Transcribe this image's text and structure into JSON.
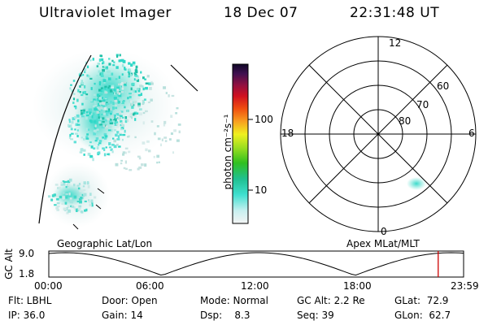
{
  "header": {
    "instrument": "Ultraviolet Imager",
    "date": "18 Dec 07",
    "time": "22:31:48 UT"
  },
  "colorbar": {
    "label": "photon cm⁻²s⁻¹",
    "ticks": [
      "100",
      "10"
    ]
  },
  "polar_plot": {
    "clock_labels": {
      "top": "12",
      "left": "18",
      "right": "6",
      "bottom": "0"
    },
    "lat_labels": [
      "60",
      "70",
      "80"
    ]
  },
  "timeline": {
    "left_label": "Geographic Lat/Lon",
    "right_label": "Apex MLat/MLT",
    "axis_name": "GC Alt",
    "y_ticks": [
      "9.0",
      "1.8"
    ],
    "x_ticks": [
      "00:00",
      "06:00",
      "12:00",
      "18:00",
      "23:59"
    ],
    "marker_time_hours": 22.53,
    "colors": {
      "marker": "#cc0000"
    }
  },
  "info": {
    "row1": [
      {
        "text": "Flt: LBHL"
      },
      {
        "text": "Door: Open"
      },
      {
        "text": "Mode: Normal"
      },
      {
        "text": "GC Alt: 2.2 Re"
      },
      {
        "text": "GLat:  72.9"
      }
    ],
    "row2": [
      {
        "text": "IP: 36.0"
      },
      {
        "text": "Gain: 14"
      },
      {
        "text": "Dsp:    8.3"
      },
      {
        "text": "Seq: 39"
      },
      {
        "text": "GLon:  62.7"
      }
    ]
  }
}
